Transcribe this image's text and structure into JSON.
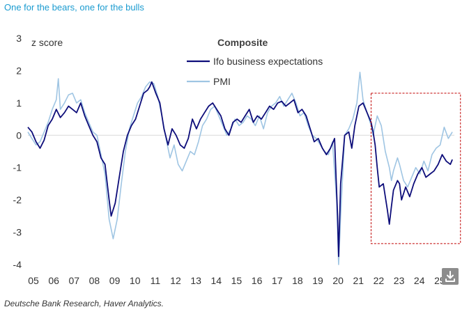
{
  "headline": "One for the bears, one for the bulls",
  "source": "Deutsche Bank Research, Haver Analytics.",
  "download_icon": "download-icon",
  "colors": {
    "ifo": "#0d0d7a",
    "pmi": "#9fc5e3",
    "headline": "#1a9bd0",
    "highlight_box": "#c00000"
  },
  "chart_data": {
    "type": "line",
    "title": "Composite",
    "ylabel": "z score",
    "ylim": [
      -4,
      3
    ],
    "yticks": [
      3,
      2,
      1,
      0,
      -1,
      -2,
      -3,
      -4
    ],
    "xlim": [
      2005,
      2026
    ],
    "xtick_labels": [
      "05",
      "06",
      "07",
      "08",
      "09",
      "10",
      "11",
      "12",
      "13",
      "14",
      "15",
      "16",
      "17",
      "18",
      "19",
      "20",
      "21",
      "22",
      "23",
      "24",
      "25"
    ],
    "zero_line": true,
    "legend_position": "top-center",
    "highlight_region": {
      "x_start": 2021.9,
      "x_end": 2026.3,
      "y_start": 1.3,
      "y_end": -3.35
    },
    "series": [
      {
        "name": "Ifo business expectations",
        "color": "#0d0d7a",
        "points": [
          [
            2005.0,
            0.25
          ],
          [
            2005.2,
            0.1
          ],
          [
            2005.4,
            -0.2
          ],
          [
            2005.6,
            -0.4
          ],
          [
            2005.8,
            -0.15
          ],
          [
            2006.0,
            0.3
          ],
          [
            2006.2,
            0.5
          ],
          [
            2006.4,
            0.8
          ],
          [
            2006.6,
            0.55
          ],
          [
            2006.8,
            0.7
          ],
          [
            2007.0,
            0.9
          ],
          [
            2007.2,
            0.8
          ],
          [
            2007.4,
            0.7
          ],
          [
            2007.6,
            1.0
          ],
          [
            2007.8,
            0.6
          ],
          [
            2008.0,
            0.3
          ],
          [
            2008.2,
            0.0
          ],
          [
            2008.4,
            -0.2
          ],
          [
            2008.6,
            -0.7
          ],
          [
            2008.8,
            -0.9
          ],
          [
            2009.0,
            -2.0
          ],
          [
            2009.1,
            -2.5
          ],
          [
            2009.3,
            -2.1
          ],
          [
            2009.5,
            -1.3
          ],
          [
            2009.7,
            -0.5
          ],
          [
            2009.9,
            0.0
          ],
          [
            2010.1,
            0.3
          ],
          [
            2010.3,
            0.5
          ],
          [
            2010.5,
            0.9
          ],
          [
            2010.7,
            1.3
          ],
          [
            2010.9,
            1.4
          ],
          [
            2011.0,
            1.5
          ],
          [
            2011.1,
            1.65
          ],
          [
            2011.3,
            1.3
          ],
          [
            2011.5,
            1.0
          ],
          [
            2011.7,
            0.2
          ],
          [
            2011.9,
            -0.3
          ],
          [
            2012.1,
            0.2
          ],
          [
            2012.3,
            0.0
          ],
          [
            2012.5,
            -0.3
          ],
          [
            2012.7,
            -0.4
          ],
          [
            2012.9,
            -0.1
          ],
          [
            2013.1,
            0.5
          ],
          [
            2013.3,
            0.2
          ],
          [
            2013.5,
            0.5
          ],
          [
            2013.7,
            0.7
          ],
          [
            2013.9,
            0.9
          ],
          [
            2014.1,
            1.0
          ],
          [
            2014.3,
            0.8
          ],
          [
            2014.5,
            0.6
          ],
          [
            2014.7,
            0.2
          ],
          [
            2014.9,
            0.0
          ],
          [
            2015.1,
            0.4
          ],
          [
            2015.3,
            0.5
          ],
          [
            2015.5,
            0.4
          ],
          [
            2015.7,
            0.6
          ],
          [
            2015.9,
            0.8
          ],
          [
            2016.1,
            0.4
          ],
          [
            2016.3,
            0.6
          ],
          [
            2016.5,
            0.5
          ],
          [
            2016.7,
            0.7
          ],
          [
            2016.9,
            0.9
          ],
          [
            2017.1,
            0.8
          ],
          [
            2017.3,
            1.0
          ],
          [
            2017.5,
            1.05
          ],
          [
            2017.7,
            0.9
          ],
          [
            2017.9,
            1.0
          ],
          [
            2018.1,
            1.1
          ],
          [
            2018.3,
            0.7
          ],
          [
            2018.5,
            0.8
          ],
          [
            2018.7,
            0.6
          ],
          [
            2018.9,
            0.2
          ],
          [
            2019.1,
            -0.2
          ],
          [
            2019.3,
            -0.1
          ],
          [
            2019.5,
            -0.4
          ],
          [
            2019.7,
            -0.6
          ],
          [
            2019.9,
            -0.4
          ],
          [
            2020.1,
            -0.1
          ],
          [
            2020.25,
            -2.5
          ],
          [
            2020.3,
            -3.75
          ],
          [
            2020.4,
            -1.5
          ],
          [
            2020.6,
            0.0
          ],
          [
            2020.8,
            0.1
          ],
          [
            2020.95,
            -0.4
          ],
          [
            2021.1,
            0.3
          ],
          [
            2021.3,
            0.9
          ],
          [
            2021.5,
            1.0
          ],
          [
            2021.7,
            0.7
          ],
          [
            2021.9,
            0.4
          ],
          [
            2022.0,
            0.1
          ],
          [
            2022.1,
            -0.3
          ],
          [
            2022.2,
            -1.0
          ],
          [
            2022.3,
            -1.6
          ],
          [
            2022.5,
            -1.5
          ],
          [
            2022.7,
            -2.3
          ],
          [
            2022.8,
            -2.75
          ],
          [
            2022.9,
            -2.2
          ],
          [
            2023.0,
            -1.7
          ],
          [
            2023.2,
            -1.4
          ],
          [
            2023.3,
            -1.5
          ],
          [
            2023.4,
            -2.0
          ],
          [
            2023.6,
            -1.6
          ],
          [
            2023.8,
            -1.9
          ],
          [
            2024.0,
            -1.5
          ],
          [
            2024.2,
            -1.2
          ],
          [
            2024.4,
            -1.0
          ],
          [
            2024.6,
            -1.3
          ],
          [
            2024.8,
            -1.2
          ],
          [
            2025.0,
            -1.1
          ],
          [
            2025.2,
            -0.9
          ],
          [
            2025.4,
            -0.6
          ],
          [
            2025.6,
            -0.8
          ],
          [
            2025.8,
            -0.9
          ],
          [
            2025.9,
            -0.75
          ]
        ]
      },
      {
        "name": "PMI",
        "color": "#9fc5e3",
        "points": [
          [
            2005.0,
            0.1
          ],
          [
            2005.2,
            -0.1
          ],
          [
            2005.4,
            -0.3
          ],
          [
            2005.6,
            -0.2
          ],
          [
            2005.8,
            0.1
          ],
          [
            2006.0,
            0.4
          ],
          [
            2006.2,
            0.8
          ],
          [
            2006.4,
            1.1
          ],
          [
            2006.5,
            1.75
          ],
          [
            2006.6,
            0.8
          ],
          [
            2006.8,
            1.0
          ],
          [
            2007.0,
            1.25
          ],
          [
            2007.2,
            1.3
          ],
          [
            2007.4,
            1.0
          ],
          [
            2007.6,
            1.1
          ],
          [
            2007.8,
            0.7
          ],
          [
            2008.0,
            0.4
          ],
          [
            2008.2,
            0.1
          ],
          [
            2008.4,
            0.0
          ],
          [
            2008.6,
            -0.6
          ],
          [
            2008.8,
            -1.2
          ],
          [
            2009.0,
            -2.6
          ],
          [
            2009.2,
            -3.2
          ],
          [
            2009.4,
            -2.6
          ],
          [
            2009.6,
            -1.5
          ],
          [
            2009.8,
            -0.5
          ],
          [
            2010.0,
            0.2
          ],
          [
            2010.2,
            0.6
          ],
          [
            2010.4,
            1.0
          ],
          [
            2010.6,
            1.2
          ],
          [
            2010.8,
            1.5
          ],
          [
            2011.0,
            1.65
          ],
          [
            2011.2,
            1.6
          ],
          [
            2011.4,
            1.2
          ],
          [
            2011.6,
            0.6
          ],
          [
            2011.8,
            -0.1
          ],
          [
            2012.0,
            -0.7
          ],
          [
            2012.2,
            -0.3
          ],
          [
            2012.4,
            -0.9
          ],
          [
            2012.6,
            -1.1
          ],
          [
            2012.8,
            -0.8
          ],
          [
            2013.0,
            -0.5
          ],
          [
            2013.2,
            -0.6
          ],
          [
            2013.4,
            -0.2
          ],
          [
            2013.6,
            0.3
          ],
          [
            2013.8,
            0.5
          ],
          [
            2014.0,
            0.8
          ],
          [
            2014.2,
            0.9
          ],
          [
            2014.4,
            0.6
          ],
          [
            2014.6,
            0.3
          ],
          [
            2014.8,
            0.0
          ],
          [
            2015.0,
            0.2
          ],
          [
            2015.2,
            0.5
          ],
          [
            2015.4,
            0.3
          ],
          [
            2015.6,
            0.4
          ],
          [
            2015.8,
            0.6
          ],
          [
            2016.0,
            0.5
          ],
          [
            2016.2,
            0.3
          ],
          [
            2016.4,
            0.6
          ],
          [
            2016.6,
            0.2
          ],
          [
            2016.8,
            0.7
          ],
          [
            2017.0,
            0.9
          ],
          [
            2017.2,
            1.0
          ],
          [
            2017.4,
            1.2
          ],
          [
            2017.6,
            0.9
          ],
          [
            2017.8,
            1.1
          ],
          [
            2018.0,
            1.3
          ],
          [
            2018.2,
            1.0
          ],
          [
            2018.4,
            0.6
          ],
          [
            2018.6,
            0.7
          ],
          [
            2018.8,
            0.3
          ],
          [
            2019.0,
            0.0
          ],
          [
            2019.2,
            -0.1
          ],
          [
            2019.4,
            -0.3
          ],
          [
            2019.6,
            -0.5
          ],
          [
            2019.8,
            -0.6
          ],
          [
            2020.0,
            -0.2
          ],
          [
            2020.2,
            -2.0
          ],
          [
            2020.3,
            -4.0
          ],
          [
            2020.4,
            -2.5
          ],
          [
            2020.6,
            0.0
          ],
          [
            2020.8,
            0.2
          ],
          [
            2021.0,
            0.5
          ],
          [
            2021.2,
            1.0
          ],
          [
            2021.35,
            1.95
          ],
          [
            2021.5,
            1.1
          ],
          [
            2021.7,
            0.7
          ],
          [
            2021.9,
            0.3
          ],
          [
            2022.0,
            0.0
          ],
          [
            2022.2,
            0.6
          ],
          [
            2022.4,
            0.3
          ],
          [
            2022.6,
            -0.5
          ],
          [
            2022.8,
            -1.0
          ],
          [
            2022.9,
            -1.4
          ],
          [
            2023.0,
            -1.1
          ],
          [
            2023.2,
            -0.7
          ],
          [
            2023.3,
            -0.9
          ],
          [
            2023.5,
            -1.4
          ],
          [
            2023.7,
            -1.6
          ],
          [
            2023.9,
            -1.3
          ],
          [
            2024.1,
            -1.0
          ],
          [
            2024.3,
            -1.2
          ],
          [
            2024.5,
            -0.8
          ],
          [
            2024.7,
            -1.1
          ],
          [
            2024.9,
            -0.6
          ],
          [
            2025.1,
            -0.4
          ],
          [
            2025.3,
            -0.3
          ],
          [
            2025.5,
            0.25
          ],
          [
            2025.7,
            -0.1
          ],
          [
            2025.9,
            0.1
          ]
        ]
      }
    ]
  }
}
